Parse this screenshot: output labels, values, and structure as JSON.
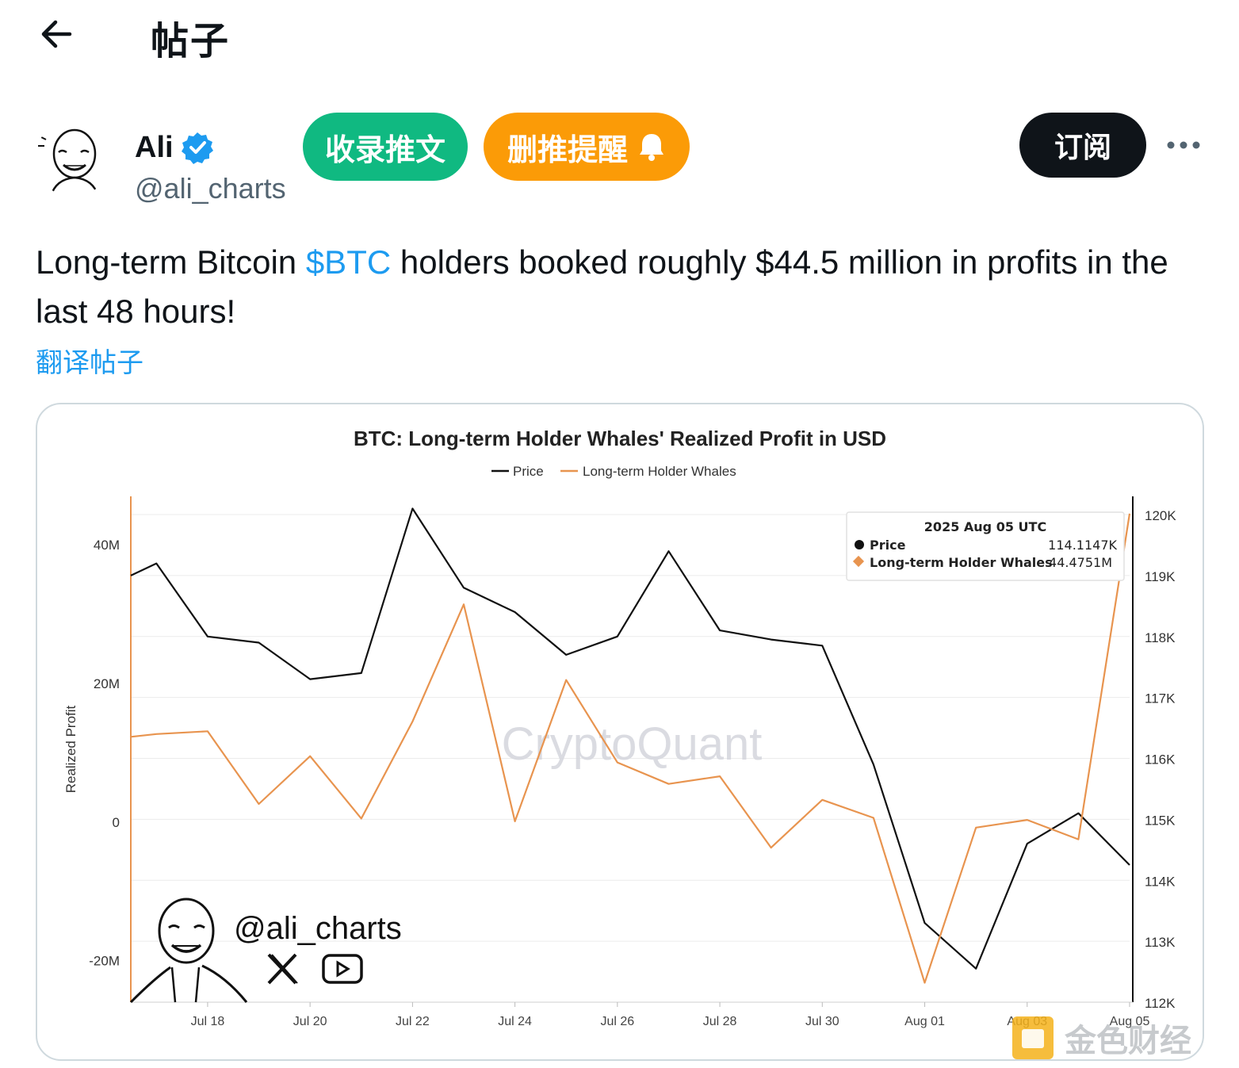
{
  "header": {
    "title": "帖子"
  },
  "author": {
    "name": "Ali",
    "handle": "@ali_charts"
  },
  "actions": {
    "collect_label": "收录推文",
    "alert_label": "删推提醒",
    "subscribe_label": "订阅"
  },
  "tweet": {
    "text_before": "Long-term Bitcoin ",
    "cashtag": "$BTC",
    "text_after": " holders booked roughly $44.5 million in profits in the last 48 hours!",
    "translate_label": "翻译帖子"
  },
  "watermark": {
    "handle": "@ali_charts",
    "brand": "CryptoQuant",
    "footer_brand": "金色财经"
  },
  "colors": {
    "accent": "#1d9bf0",
    "collect": "#10b981",
    "alert": "#fb9b07",
    "series_price": "#111111",
    "series_whales": "#e8944f"
  },
  "chart_data": {
    "type": "line",
    "title": "BTC: Long-term Holder Whales' Realized Profit in USD",
    "ylabel": "Realized Profit",
    "legend": [
      "Price",
      "Long-term Holder Whales"
    ],
    "legend_placement": "top-center",
    "x_tick_labels": [
      "Jul 18",
      "Jul 20",
      "Jul 22",
      "Jul 24",
      "Jul 26",
      "Jul 28",
      "Jul 30",
      "Aug 01",
      "Aug 03",
      "Aug 05"
    ],
    "y_left_tick_labels": [
      "40M",
      "20M",
      "0",
      "-20M"
    ],
    "y_left_ticks": [
      40,
      20,
      0,
      -20
    ],
    "y_left_lim": [
      -26,
      47
    ],
    "y_right_tick_labels": [
      "120K",
      "119K",
      "118K",
      "117K",
      "116K",
      "115K",
      "114K",
      "113K",
      "112K"
    ],
    "y_right_ticks": [
      120,
      119,
      118,
      117,
      116,
      115,
      114,
      113,
      112
    ],
    "y_right_lim": [
      112,
      120.3
    ],
    "days": [
      0,
      0.5,
      1.5,
      2.5,
      3.5,
      4.5,
      5.5,
      6.5,
      7.5,
      8.5,
      9.5,
      10.5,
      11.5,
      12.5,
      13.5,
      14.5,
      15.5,
      16.5,
      17.5,
      18.5,
      19.5
    ],
    "series": [
      {
        "name": "Price",
        "unit": "K USD",
        "values": [
          119.0,
          119.2,
          118.0,
          117.9,
          117.3,
          117.4,
          120.1,
          118.8,
          118.4,
          117.7,
          118.0,
          119.4,
          118.1,
          117.95,
          117.85,
          115.9,
          113.3,
          112.55,
          114.6,
          115.1,
          114.25
        ]
      },
      {
        "name": "Long-term Holder Whales",
        "unit": "M USD",
        "values": [
          12.3,
          12.7,
          13.1,
          2.6,
          9.5,
          0.5,
          14.5,
          31.4,
          0.1,
          20.5,
          8.6,
          5.5,
          6.6,
          -3.7,
          3.2,
          0.6,
          -23.2,
          -0.8,
          0.3,
          -2.5,
          44.5
        ]
      }
    ],
    "tooltip": {
      "date": "2025 Aug 05 UTC",
      "rows": [
        {
          "label": "Price",
          "value": "114.1147K"
        },
        {
          "label": "Long-term Holder Whales",
          "value": "44.4751M"
        }
      ]
    }
  }
}
